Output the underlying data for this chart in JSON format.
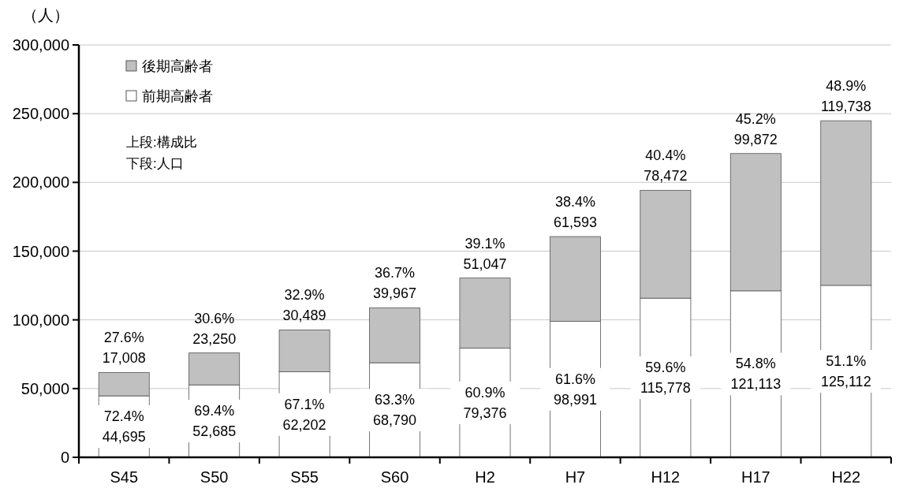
{
  "chart_data": {
    "type": "bar",
    "stacked": true,
    "ylabel": "（人）",
    "categories": [
      "S45",
      "S50",
      "S55",
      "S60",
      "H2",
      "H7",
      "H12",
      "H17",
      "H22"
    ],
    "series": [
      {
        "name": "前期高齢者",
        "color": "#ffffff",
        "values": [
          44695,
          52685,
          62202,
          68790,
          79376,
          98991,
          115778,
          121113,
          125112
        ],
        "value_labels": [
          "72.4%\n44,695",
          "69.4%\n52,685",
          "67.1%\n62,202",
          "63.3%\n68,790",
          "60.9%\n79,376",
          "61.6%\n98,991",
          "59.6%\n115,778",
          "54.8%\n121,113",
          "51.1%\n125,112"
        ]
      },
      {
        "name": "後期高齢者",
        "color": "#c0c0c0",
        "values": [
          17008,
          23250,
          30489,
          39967,
          51047,
          61593,
          78472,
          99872,
          119738
        ],
        "value_labels": [
          "27.6%\n17,008",
          "30.6%\n23,250",
          "32.9%\n30,489",
          "36.7%\n39,967",
          "39.1%\n51,047",
          "38.4%\n61,593",
          "40.4%\n78,472",
          "45.2%\n99,872",
          "48.9%\n119,738"
        ]
      }
    ],
    "ylim": [
      0,
      300000
    ],
    "yticks": [
      {
        "value": 0,
        "label": "0"
      },
      {
        "value": 50000,
        "label": "50,000"
      },
      {
        "value": 100000,
        "label": "100,000"
      },
      {
        "value": 150000,
        "label": "150,000"
      },
      {
        "value": 200000,
        "label": "200,000"
      },
      {
        "value": 250000,
        "label": "250,000"
      },
      {
        "value": 300000,
        "label": "300,000"
      }
    ],
    "grid": "y",
    "legend": "top left",
    "annotations": [
      "上段:構成比",
      "下段:人口"
    ]
  }
}
